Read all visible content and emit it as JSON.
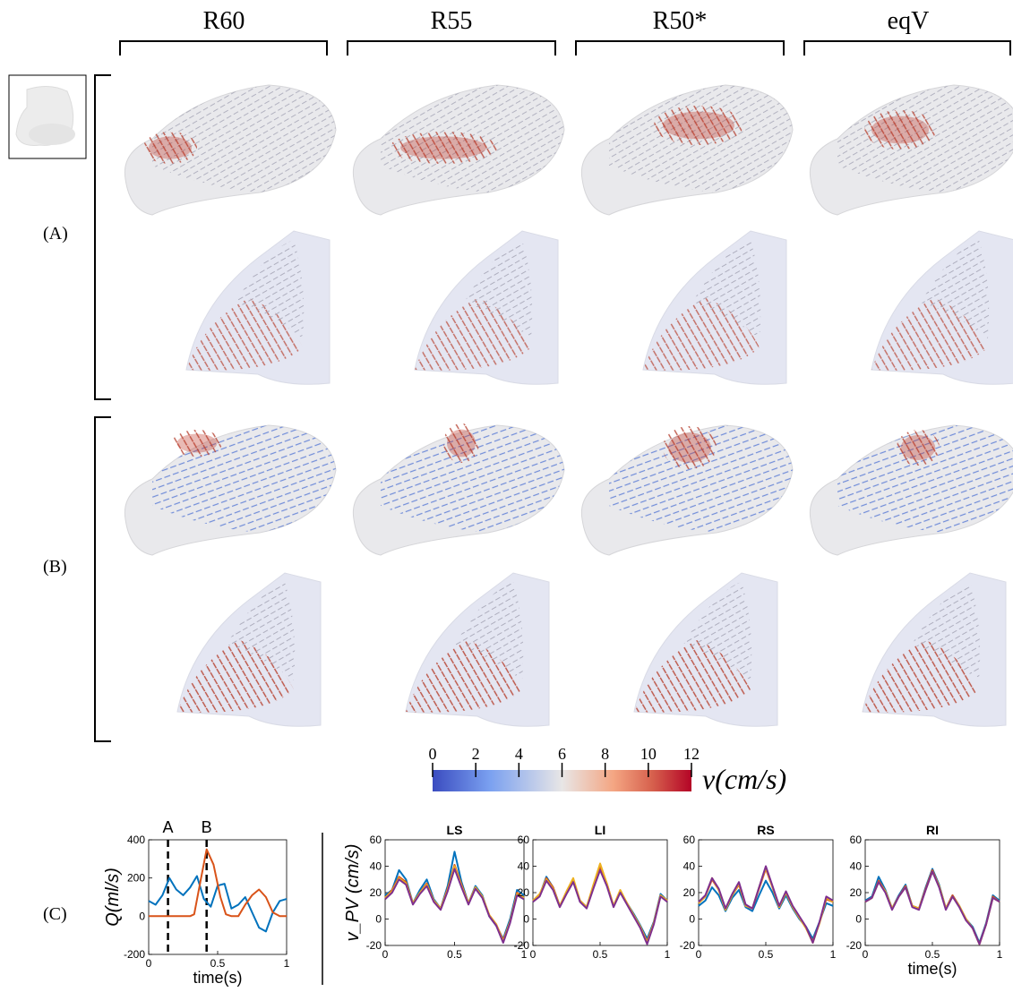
{
  "figure": {
    "columns": [
      "R60",
      "R55",
      "R50*",
      "eqV"
    ],
    "rows": [
      "(A)",
      "(B)",
      "(C)"
    ],
    "colorbar": {
      "ticks": [
        "0",
        "2",
        "4",
        "6",
        "8",
        "10",
        "12"
      ],
      "label": "v(cm/s)",
      "colors": [
        "#3b4cc0",
        "#7aa0f0",
        "#dddcdc",
        "#f4a582",
        "#d6604d",
        "#b40426",
        "#67001f"
      ]
    }
  },
  "chart_data": [
    {
      "type": "line",
      "title": "",
      "xlabel": "time(s)",
      "ylabel": "Q(ml/s)",
      "xlim": [
        0,
        1
      ],
      "ylim": [
        -200,
        400
      ],
      "xticks": [
        "0",
        "0.5",
        "1"
      ],
      "yticks": [
        "-200",
        "0",
        "200",
        "400"
      ],
      "markers": [
        {
          "label": "A",
          "x": 0.14
        },
        {
          "label": "B",
          "x": 0.42
        }
      ],
      "series": [
        {
          "color": "#0072bd",
          "x": [
            0,
            0.05,
            0.1,
            0.15,
            0.2,
            0.25,
            0.3,
            0.35,
            0.4,
            0.45,
            0.5,
            0.55,
            0.6,
            0.65,
            0.7,
            0.75,
            0.8,
            0.85,
            0.9,
            0.95,
            1.0
          ],
          "values": [
            80,
            60,
            110,
            200,
            140,
            110,
            150,
            210,
            90,
            50,
            160,
            170,
            40,
            60,
            100,
            20,
            -60,
            -80,
            20,
            80,
            90
          ]
        },
        {
          "color": "#d95319",
          "x": [
            0,
            0.05,
            0.1,
            0.15,
            0.2,
            0.25,
            0.3,
            0.33,
            0.38,
            0.42,
            0.47,
            0.52,
            0.56,
            0.6,
            0.65,
            0.7,
            0.75,
            0.8,
            0.85,
            0.9,
            0.95,
            1.0
          ],
          "values": [
            0,
            0,
            0,
            0,
            0,
            0,
            0,
            10,
            200,
            350,
            270,
            100,
            10,
            0,
            0,
            60,
            110,
            140,
            100,
            20,
            0,
            0
          ]
        }
      ]
    },
    {
      "type": "line",
      "title": "LS",
      "xlabel": "",
      "ylabel": "v_PV (cm/s)",
      "xlim": [
        0,
        1
      ],
      "ylim": [
        -20,
        60
      ],
      "xticks": [
        "0",
        "0.5",
        "1"
      ],
      "yticks": [
        "-20",
        "0",
        "20",
        "40",
        "60"
      ],
      "x": [
        0,
        0.05,
        0.1,
        0.15,
        0.2,
        0.25,
        0.3,
        0.35,
        0.4,
        0.45,
        0.5,
        0.55,
        0.6,
        0.65,
        0.7,
        0.75,
        0.8,
        0.85,
        0.9,
        0.95,
        1.0
      ],
      "series": [
        {
          "color": "#0072bd",
          "values": [
            18,
            22,
            37,
            30,
            12,
            22,
            30,
            15,
            8,
            25,
            51,
            28,
            12,
            25,
            18,
            2,
            -5,
            -15,
            0,
            22,
            18
          ]
        },
        {
          "color": "#d95319",
          "values": [
            16,
            22,
            32,
            28,
            12,
            20,
            27,
            14,
            8,
            23,
            41,
            26,
            12,
            24,
            17,
            3,
            -4,
            -16,
            -2,
            20,
            16
          ]
        },
        {
          "color": "#edb120",
          "values": [
            16,
            21,
            31,
            27,
            12,
            20,
            26,
            14,
            8,
            22,
            40,
            25,
            12,
            24,
            17,
            3,
            -4,
            -17,
            -2,
            19,
            16
          ]
        },
        {
          "color": "#7e2f8e",
          "values": [
            15,
            20,
            30,
            26,
            11,
            19,
            25,
            13,
            7,
            21,
            38,
            24,
            11,
            23,
            16,
            2,
            -5,
            -18,
            -3,
            18,
            15
          ]
        }
      ]
    },
    {
      "type": "line",
      "title": "LI",
      "xlabel": "",
      "ylabel": "",
      "xlim": [
        0,
        1
      ],
      "ylim": [
        -20,
        60
      ],
      "xticks": [
        "0",
        "0.5",
        "1"
      ],
      "yticks": [
        "-20",
        "0",
        "20",
        "40",
        "60"
      ],
      "x": [
        0,
        0.05,
        0.1,
        0.15,
        0.2,
        0.25,
        0.3,
        0.35,
        0.4,
        0.45,
        0.5,
        0.55,
        0.6,
        0.65,
        0.7,
        0.75,
        0.8,
        0.85,
        0.9,
        0.95,
        1.0
      ],
      "series": [
        {
          "color": "#0072bd",
          "values": [
            14,
            18,
            32,
            24,
            10,
            20,
            29,
            14,
            9,
            24,
            38,
            26,
            10,
            21,
            12,
            4,
            -5,
            -15,
            -2,
            19,
            14
          ]
        },
        {
          "color": "#d95319",
          "values": [
            14,
            18,
            31,
            24,
            10,
            20,
            30,
            14,
            9,
            25,
            40,
            27,
            10,
            21,
            12,
            3,
            -6,
            -17,
            -3,
            18,
            14
          ]
        },
        {
          "color": "#edb120",
          "values": [
            14,
            19,
            30,
            23,
            10,
            21,
            31,
            14,
            9,
            26,
            42,
            27,
            10,
            22,
            12,
            3,
            -6,
            -18,
            -3,
            18,
            14
          ]
        },
        {
          "color": "#7e2f8e",
          "values": [
            13,
            17,
            29,
            22,
            9,
            19,
            28,
            13,
            8,
            23,
            37,
            25,
            9,
            20,
            11,
            2,
            -7,
            -19,
            -4,
            17,
            13
          ]
        }
      ]
    },
    {
      "type": "line",
      "title": "RS",
      "xlabel": "",
      "ylabel": "",
      "xlim": [
        0,
        1
      ],
      "ylim": [
        -20,
        60
      ],
      "xticks": [
        "0",
        "0.5",
        "1"
      ],
      "yticks": [
        "-20",
        "0",
        "20",
        "40",
        "60"
      ],
      "x": [
        0,
        0.05,
        0.1,
        0.15,
        0.2,
        0.25,
        0.3,
        0.35,
        0.4,
        0.45,
        0.5,
        0.55,
        0.6,
        0.65,
        0.7,
        0.75,
        0.8,
        0.85,
        0.9,
        0.95,
        1.0
      ],
      "series": [
        {
          "color": "#0072bd",
          "values": [
            10,
            14,
            24,
            18,
            6,
            16,
            22,
            9,
            6,
            18,
            29,
            20,
            8,
            18,
            8,
            0,
            -6,
            -15,
            -2,
            12,
            10
          ]
        },
        {
          "color": "#d95319",
          "values": [
            12,
            17,
            30,
            22,
            7,
            18,
            26,
            10,
            8,
            23,
            38,
            24,
            9,
            20,
            9,
            1,
            -7,
            -17,
            -3,
            15,
            13
          ]
        },
        {
          "color": "#edb120",
          "values": [
            12,
            17,
            31,
            22,
            7,
            18,
            27,
            10,
            8,
            24,
            39,
            24,
            9,
            20,
            9,
            1,
            -7,
            -18,
            -3,
            16,
            13
          ]
        },
        {
          "color": "#7e2f8e",
          "values": [
            13,
            18,
            31,
            23,
            8,
            19,
            28,
            11,
            8,
            24,
            40,
            25,
            10,
            21,
            10,
            2,
            -6,
            -18,
            -2,
            17,
            14
          ]
        }
      ]
    },
    {
      "type": "line",
      "title": "RI",
      "xlabel": "time(s)",
      "ylabel": "",
      "xlim": [
        0,
        1
      ],
      "ylim": [
        -20,
        60
      ],
      "xticks": [
        "0",
        "0.5",
        "1"
      ],
      "yticks": [
        "-20",
        "0",
        "20",
        "40",
        "60"
      ],
      "x": [
        0,
        0.05,
        0.1,
        0.15,
        0.2,
        0.25,
        0.3,
        0.35,
        0.4,
        0.45,
        0.5,
        0.55,
        0.6,
        0.65,
        0.7,
        0.75,
        0.8,
        0.85,
        0.9,
        0.95,
        1.0
      ],
      "series": [
        {
          "color": "#0072bd",
          "values": [
            14,
            17,
            32,
            22,
            8,
            18,
            26,
            10,
            8,
            24,
            38,
            26,
            8,
            18,
            10,
            0,
            -6,
            -18,
            -3,
            18,
            14
          ]
        },
        {
          "color": "#d95319",
          "values": [
            13,
            16,
            29,
            21,
            8,
            17,
            25,
            10,
            8,
            23,
            37,
            25,
            8,
            18,
            10,
            0,
            -7,
            -19,
            -4,
            17,
            13
          ]
        },
        {
          "color": "#edb120",
          "values": [
            13,
            16,
            28,
            21,
            8,
            17,
            24,
            10,
            8,
            22,
            36,
            25,
            8,
            17,
            10,
            0,
            -7,
            -19,
            -4,
            16,
            13
          ]
        },
        {
          "color": "#7e2f8e",
          "values": [
            13,
            16,
            28,
            20,
            7,
            17,
            24,
            9,
            7,
            22,
            36,
            24,
            7,
            17,
            9,
            -1,
            -7,
            -19,
            -4,
            16,
            13
          ]
        }
      ]
    }
  ]
}
